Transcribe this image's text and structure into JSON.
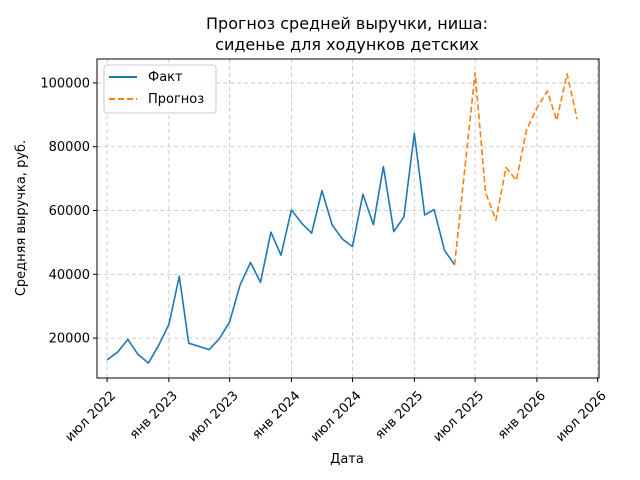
{
  "chart_data": {
    "type": "line",
    "title_lines": [
      "Прогноз средней выручки, ниша:",
      "сиденье для ходунков детских"
    ],
    "xlabel": "Дата",
    "ylabel": "Средняя выручка, руб.",
    "x_range": [
      "2022-06-01",
      "2026-07-05"
    ],
    "ylim": [
      7500,
      107500
    ],
    "yticks": [
      20000,
      40000,
      60000,
      80000,
      100000
    ],
    "xticks": [
      {
        "date": "2022-07-01",
        "label": "июл 2022"
      },
      {
        "date": "2023-01-01",
        "label": "янв 2023"
      },
      {
        "date": "2023-07-01",
        "label": "июл 2023"
      },
      {
        "date": "2024-01-01",
        "label": "янв 2024"
      },
      {
        "date": "2024-07-01",
        "label": "июл 2024"
      },
      {
        "date": "2025-01-01",
        "label": "янв 2025"
      },
      {
        "date": "2025-07-01",
        "label": "июл 2025"
      },
      {
        "date": "2026-01-01",
        "label": "янв 2026"
      },
      {
        "date": "2026-07-01",
        "label": "июл 2026"
      }
    ],
    "grid": true,
    "legend_position": "top-left",
    "series": [
      {
        "name": "Факт",
        "color": "#1f77b4",
        "style": "solid",
        "points": [
          [
            "2022-07-01",
            13200
          ],
          [
            "2022-08-01",
            15600
          ],
          [
            "2022-09-01",
            19600
          ],
          [
            "2022-10-01",
            14900
          ],
          [
            "2022-11-01",
            12200
          ],
          [
            "2022-12-01",
            17600
          ],
          [
            "2023-01-01",
            24300
          ],
          [
            "2023-02-01",
            39400
          ],
          [
            "2023-03-01",
            18400
          ],
          [
            "2023-05-01",
            16400
          ],
          [
            "2023-06-01",
            19900
          ],
          [
            "2023-07-01",
            25100
          ],
          [
            "2023-08-01",
            36600
          ],
          [
            "2023-09-01",
            43700
          ],
          [
            "2023-10-01",
            37500
          ],
          [
            "2023-11-01",
            53200
          ],
          [
            "2023-12-01",
            46000
          ],
          [
            "2024-01-01",
            60200
          ],
          [
            "2024-02-01",
            56000
          ],
          [
            "2024-03-01",
            52900
          ],
          [
            "2024-04-01",
            66200
          ],
          [
            "2024-05-01",
            55500
          ],
          [
            "2024-06-01",
            51000
          ],
          [
            "2024-07-01",
            48700
          ],
          [
            "2024-08-01",
            65100
          ],
          [
            "2024-09-01",
            55600
          ],
          [
            "2024-10-01",
            73800
          ],
          [
            "2024-11-01",
            53400
          ],
          [
            "2024-12-01",
            58000
          ],
          [
            "2025-01-01",
            84200
          ],
          [
            "2025-02-01",
            58600
          ],
          [
            "2025-03-01",
            60300
          ],
          [
            "2025-04-01",
            47500
          ],
          [
            "2025-05-01",
            43000
          ]
        ]
      },
      {
        "name": "Прогноз",
        "color": "#ff7f0e",
        "style": "dashed",
        "points": [
          [
            "2025-05-01",
            43000
          ],
          [
            "2025-06-01",
            73700
          ],
          [
            "2025-07-01",
            103200
          ],
          [
            "2025-08-01",
            65700
          ],
          [
            "2025-09-01",
            57000
          ],
          [
            "2025-10-01",
            73500
          ],
          [
            "2025-11-01",
            69500
          ],
          [
            "2025-12-01",
            85200
          ],
          [
            "2026-01-01",
            92200
          ],
          [
            "2026-02-01",
            97400
          ],
          [
            "2026-03-01",
            88300
          ],
          [
            "2026-04-01",
            102800
          ],
          [
            "2026-05-01",
            88600
          ]
        ]
      }
    ]
  }
}
